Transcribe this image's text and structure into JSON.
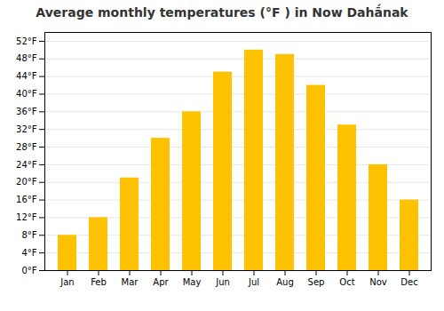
{
  "chart_data": {
    "type": "bar",
    "title": "Average monthly temperatures (°F ) in Now Dahā́nak",
    "categories": [
      "Jan",
      "Feb",
      "Mar",
      "Apr",
      "May",
      "Jun",
      "Jul",
      "Aug",
      "Sep",
      "Oct",
      "Nov",
      "Dec"
    ],
    "values": [
      8,
      12,
      21,
      30,
      36,
      45,
      50,
      49,
      42,
      33,
      24,
      16
    ],
    "color": "#FFC200",
    "ylim": [
      0,
      54
    ],
    "yticks": [
      {
        "value": 0,
        "label": "0°F"
      },
      {
        "value": 4,
        "label": "4°F"
      },
      {
        "value": 8,
        "label": "8°F"
      },
      {
        "value": 12,
        "label": "12°F"
      },
      {
        "value": 16,
        "label": "16°F"
      },
      {
        "value": 20,
        "label": "20°F"
      },
      {
        "value": 24,
        "label": "24°F"
      },
      {
        "value": 28,
        "label": "28°F"
      },
      {
        "value": 32,
        "label": "32°F"
      },
      {
        "value": 36,
        "label": "36°F"
      },
      {
        "value": 40,
        "label": "40°F"
      },
      {
        "value": 44,
        "label": "44°F"
      },
      {
        "value": 48,
        "label": "48°F"
      },
      {
        "value": 52,
        "label": "52°F"
      }
    ],
    "grid": true
  }
}
